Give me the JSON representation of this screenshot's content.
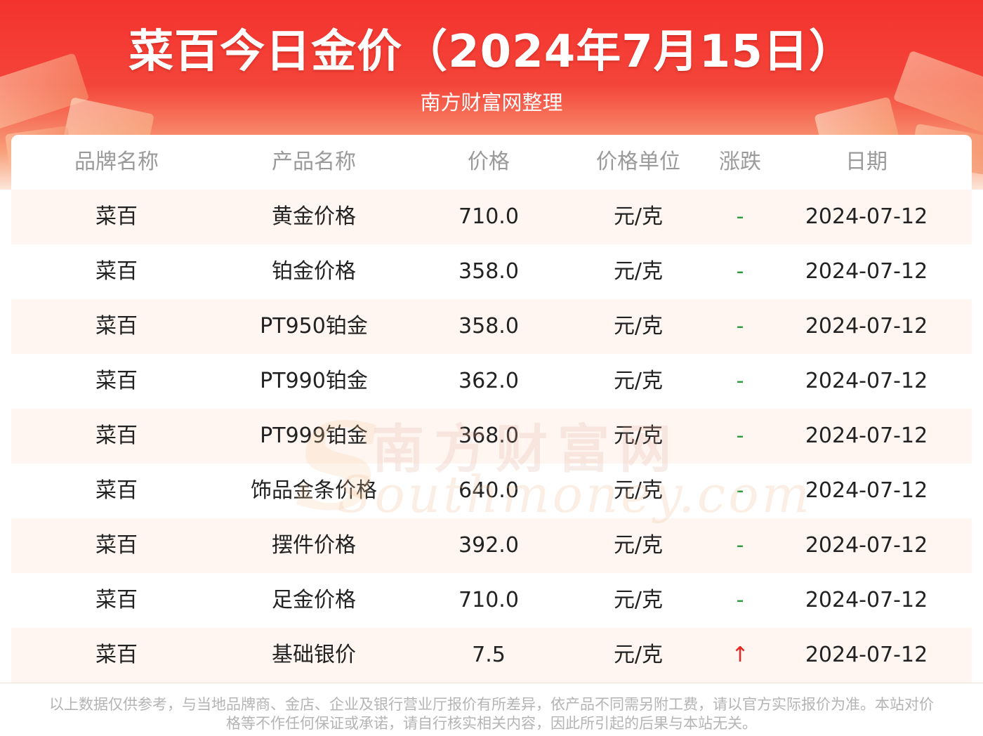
{
  "header": {
    "title": "菜百今日金价（2024年7月15日）",
    "subtitle": "南方财富网整理"
  },
  "table": {
    "columns": [
      "品牌名称",
      "产品名称",
      "价格",
      "价格单位",
      "涨跌",
      "日期"
    ],
    "rows": [
      {
        "brand": "菜百",
        "product": "黄金价格",
        "price": "710.0",
        "unit": "元/克",
        "change": "-",
        "date": "2024-07-12"
      },
      {
        "brand": "菜百",
        "product": "铂金价格",
        "price": "358.0",
        "unit": "元/克",
        "change": "-",
        "date": "2024-07-12"
      },
      {
        "brand": "菜百",
        "product": "PT950铂金",
        "price": "358.0",
        "unit": "元/克",
        "change": "-",
        "date": "2024-07-12"
      },
      {
        "brand": "菜百",
        "product": "PT990铂金",
        "price": "362.0",
        "unit": "元/克",
        "change": "-",
        "date": "2024-07-12"
      },
      {
        "brand": "菜百",
        "product": "PT999铂金",
        "price": "368.0",
        "unit": "元/克",
        "change": "-",
        "date": "2024-07-12"
      },
      {
        "brand": "菜百",
        "product": "饰品金条价格",
        "price": "640.0",
        "unit": "元/克",
        "change": "-",
        "date": "2024-07-12"
      },
      {
        "brand": "菜百",
        "product": "摆件价格",
        "price": "392.0",
        "unit": "元/克",
        "change": "-",
        "date": "2024-07-12"
      },
      {
        "brand": "菜百",
        "product": "足金价格",
        "price": "710.0",
        "unit": "元/克",
        "change": "-",
        "date": "2024-07-12"
      },
      {
        "brand": "菜百",
        "product": "基础银价",
        "price": "7.5",
        "unit": "元/克",
        "change": "↑",
        "date": "2024-07-12"
      }
    ]
  },
  "watermark": {
    "cn": "南方财富网",
    "en": "Southmoney.com"
  },
  "footer": {
    "disclaimer": "以上数据仅供参考，与当地品牌商、金店、企业及银行营业厅报价有所差异，依产品不同需另附工费，请以官方实际报价为准。本站对价格等不作任何保证或承诺，请自行核实相关内容，因此所引起的后果与本站无关。"
  },
  "colors": {
    "banner_red": "#f3322e",
    "stripe": "#fff6f2",
    "trend_flat": "#2a9d3a",
    "trend_up": "#e8261f"
  }
}
